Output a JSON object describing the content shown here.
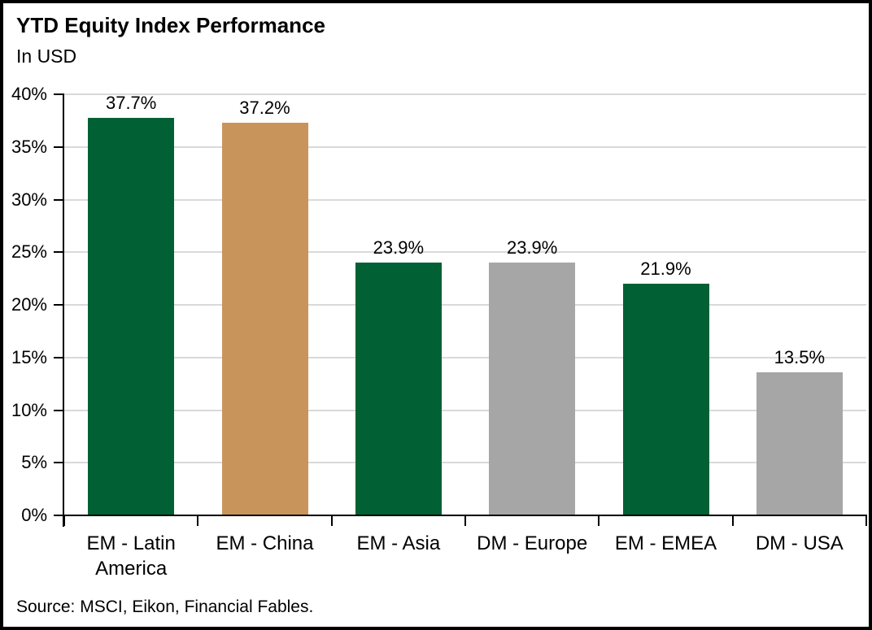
{
  "header": {
    "title": "YTD Equity Index Performance",
    "subtitle": "In USD"
  },
  "footer": {
    "source": "Source: MSCI, Eikon, Financial Fables."
  },
  "colors": {
    "bar_green": "#016134",
    "bar_tan": "#C9945C",
    "bar_gray": "#A6A6A6",
    "gridline": "#D9D9D9",
    "axis": "#000000",
    "text": "#000000",
    "background": "#FFFFFF"
  },
  "chart_data": {
    "type": "bar",
    "title": "YTD Equity Index Performance",
    "subtitle": "In USD",
    "xlabel": "",
    "ylabel": "",
    "categories": [
      "EM - Latin America",
      "EM - China",
      "EM - Asia",
      "DM - Europe",
      "EM - EMEA",
      "DM - USA"
    ],
    "values": [
      37.7,
      37.2,
      23.9,
      23.9,
      21.9,
      13.5
    ],
    "value_labels": [
      "37.7%",
      "37.2%",
      "23.9%",
      "23.9%",
      "21.9%",
      "13.5%"
    ],
    "bar_colors": [
      "#016134",
      "#C9945C",
      "#016134",
      "#A6A6A6",
      "#016134",
      "#A6A6A6"
    ],
    "ylim": [
      0,
      40
    ],
    "ytick_step": 5,
    "ytick_labels": [
      "0%",
      "5%",
      "10%",
      "15%",
      "20%",
      "25%",
      "30%",
      "35%",
      "40%"
    ],
    "grid": "horizontal-only",
    "legend": "none",
    "source": "Source: MSCI, Eikon, Financial Fables."
  }
}
